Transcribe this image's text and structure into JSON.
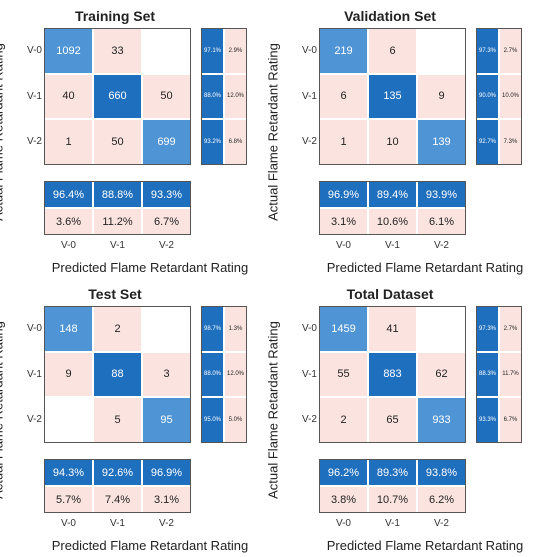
{
  "chart_data": [
    {
      "type": "heatmap",
      "title": "Training Set",
      "xlabel": "Predicted Flame Retardant Rating",
      "ylabel": "Actual Flame Retardant Rating",
      "row_labels": [
        "V-0",
        "V-1",
        "V-2"
      ],
      "col_labels": [
        "V-0",
        "V-1",
        "V-2"
      ],
      "matrix": [
        [
          1092,
          33,
          null
        ],
        [
          40,
          660,
          50
        ],
        [
          1,
          50,
          699
        ]
      ],
      "row_summary": [
        [
          "97.1%",
          "2.9%"
        ],
        [
          "88.0%",
          "12.0%"
        ],
        [
          "93.2%",
          "6.8%"
        ]
      ],
      "col_summary": [
        [
          "96.4%",
          "88.8%",
          "93.3%"
        ],
        [
          "3.6%",
          "11.2%",
          "6.7%"
        ]
      ]
    },
    {
      "type": "heatmap",
      "title": "Validation Set",
      "xlabel": "Predicted Flame Retardant Rating",
      "ylabel": "Actual Flame Retardant Rating",
      "row_labels": [
        "V-0",
        "V-1",
        "V-2"
      ],
      "col_labels": [
        "V-0",
        "V-1",
        "V-2"
      ],
      "matrix": [
        [
          219,
          6,
          null
        ],
        [
          6,
          135,
          9
        ],
        [
          1,
          10,
          139
        ]
      ],
      "row_summary": [
        [
          "97.3%",
          "2.7%"
        ],
        [
          "90.0%",
          "10.0%"
        ],
        [
          "92.7%",
          "7.3%"
        ]
      ],
      "col_summary": [
        [
          "96.9%",
          "89.4%",
          "93.9%"
        ],
        [
          "3.1%",
          "10.6%",
          "6.1%"
        ]
      ]
    },
    {
      "type": "heatmap",
      "title": "Test Set",
      "xlabel": "Predicted Flame Retardant Rating",
      "ylabel": "Actual Flame Retardant Rating",
      "row_labels": [
        "V-0",
        "V-1",
        "V-2"
      ],
      "col_labels": [
        "V-0",
        "V-1",
        "V-2"
      ],
      "matrix": [
        [
          148,
          2,
          null
        ],
        [
          9,
          88,
          3
        ],
        [
          null,
          5,
          95
        ]
      ],
      "row_summary": [
        [
          "98.7%",
          "1.3%"
        ],
        [
          "88.0%",
          "12.0%"
        ],
        [
          "95.0%",
          "5.0%"
        ]
      ],
      "col_summary": [
        [
          "94.3%",
          "92.6%",
          "96.9%"
        ],
        [
          "5.7%",
          "7.4%",
          "3.1%"
        ]
      ]
    },
    {
      "type": "heatmap",
      "title": "Total Dataset",
      "xlabel": "Predicted Flame Retardant Rating",
      "ylabel": "Actual Flame Retardant Rating",
      "row_labels": [
        "V-0",
        "V-1",
        "V-2"
      ],
      "col_labels": [
        "V-0",
        "V-1",
        "V-2"
      ],
      "matrix": [
        [
          1459,
          41,
          null
        ],
        [
          55,
          883,
          62
        ],
        [
          2,
          65,
          933
        ]
      ],
      "row_summary": [
        [
          "97.3%",
          "2.7%"
        ],
        [
          "88.3%",
          "11.7%"
        ],
        [
          "93.3%",
          "6.7%"
        ]
      ],
      "col_summary": [
        [
          "96.2%",
          "89.3%",
          "93.8%"
        ],
        [
          "3.8%",
          "10.7%",
          "6.2%"
        ]
      ]
    }
  ],
  "colors": {
    "correct_high": "#1f6fbf",
    "correct_light": "#4f94d4",
    "error_tint": "#fbe4df",
    "empty": "#ffffff"
  }
}
